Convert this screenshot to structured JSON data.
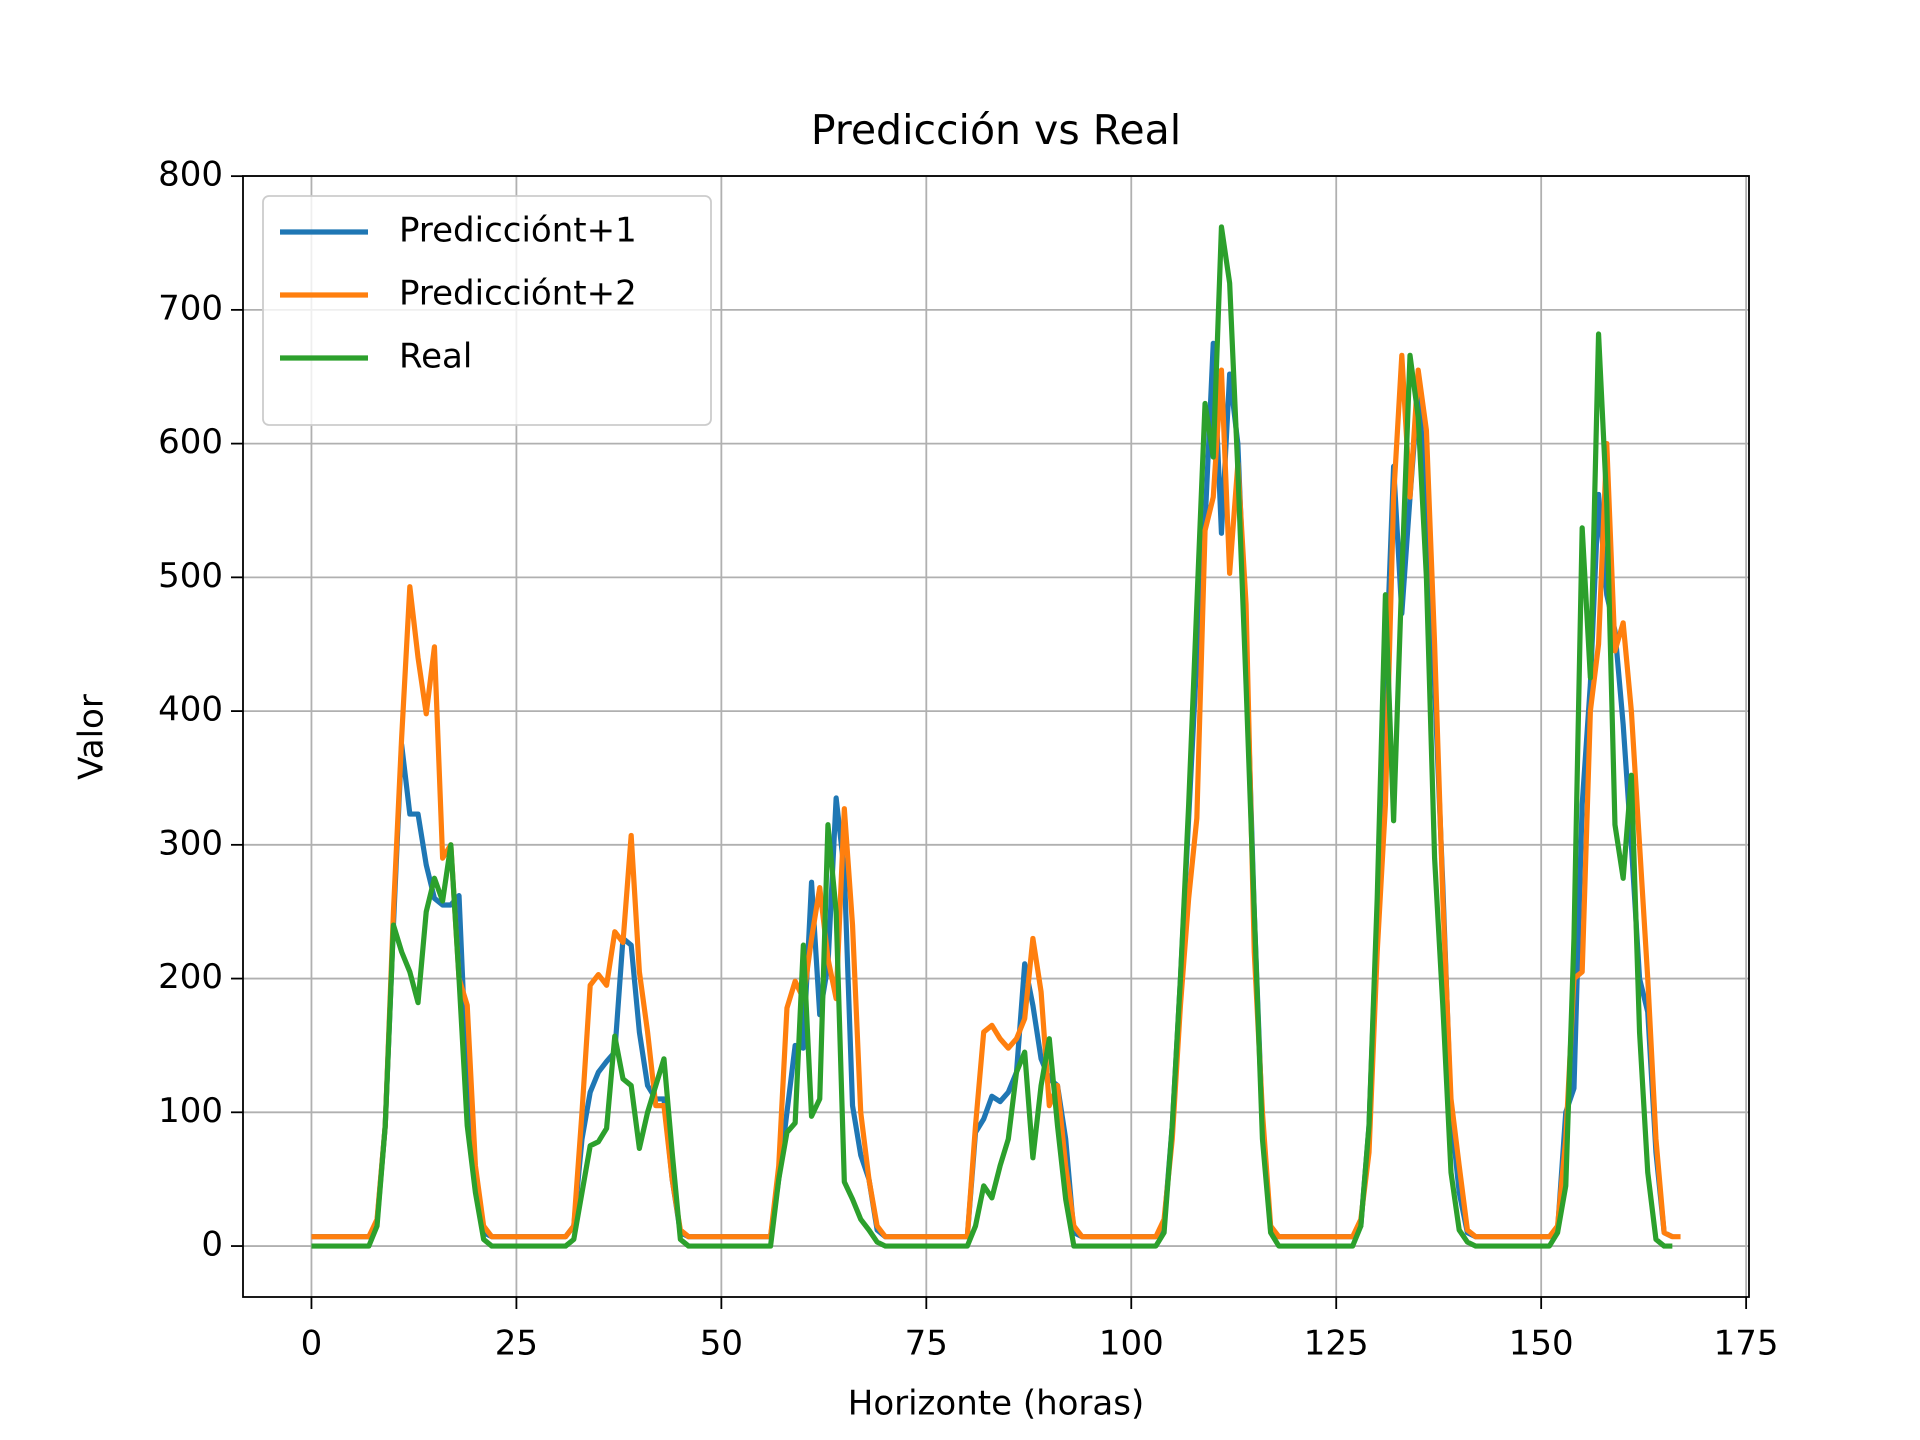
{
  "chart_data": {
    "type": "line",
    "title": "Predicción vs Real",
    "x_label": "Horizonte (horas)",
    "y_label": "Valor",
    "x": [
      0,
      1,
      2,
      3,
      4,
      5,
      6,
      7,
      8,
      9,
      10,
      11,
      12,
      13,
      14,
      15,
      16,
      17,
      18,
      19,
      20,
      21,
      22,
      23,
      24,
      25,
      26,
      27,
      28,
      29,
      30,
      31,
      32,
      33,
      34,
      35,
      36,
      37,
      38,
      39,
      40,
      41,
      42,
      43,
      44,
      45,
      46,
      47,
      48,
      49,
      50,
      51,
      52,
      53,
      54,
      55,
      56,
      57,
      58,
      59,
      60,
      61,
      62,
      63,
      64,
      65,
      66,
      67,
      68,
      69,
      70,
      71,
      72,
      73,
      74,
      75,
      76,
      77,
      78,
      79,
      80,
      81,
      82,
      83,
      84,
      85,
      86,
      87,
      88,
      89,
      90,
      91,
      92,
      93,
      94,
      95,
      96,
      97,
      98,
      99,
      100,
      101,
      102,
      103,
      104,
      105,
      106,
      107,
      108,
      109,
      110,
      111,
      112,
      113,
      114,
      115,
      116,
      117,
      118,
      119,
      120,
      121,
      122,
      123,
      124,
      125,
      126,
      127,
      128,
      129,
      130,
      131,
      132,
      133,
      134,
      135,
      136,
      137,
      138,
      139,
      140,
      141,
      142,
      143,
      144,
      145,
      146,
      147,
      148,
      149,
      150,
      151,
      152,
      153,
      154,
      155,
      156,
      157,
      158,
      159,
      160,
      161,
      162,
      163,
      164,
      165,
      166,
      167
    ],
    "series": [
      {
        "name": "Predicciónt+1",
        "color": "#1f77b4",
        "values": [
          7,
          7,
          7,
          7,
          7,
          7,
          7,
          7,
          18,
          90,
          240,
          375,
          323,
          323,
          285,
          260,
          255,
          255,
          262,
          120,
          50,
          10,
          7,
          7,
          7,
          7,
          7,
          7,
          7,
          7,
          7,
          7,
          15,
          80,
          115,
          130,
          138,
          145,
          230,
          225,
          160,
          120,
          110,
          110,
          50,
          10,
          7,
          7,
          7,
          7,
          7,
          7,
          7,
          7,
          7,
          7,
          7,
          50,
          100,
          150,
          148,
          272,
          173,
          210,
          335,
          280,
          105,
          68,
          50,
          12,
          7,
          7,
          7,
          7,
          7,
          7,
          7,
          7,
          7,
          7,
          7,
          85,
          95,
          112,
          108,
          115,
          130,
          211,
          180,
          140,
          125,
          120,
          80,
          10,
          7,
          7,
          7,
          7,
          7,
          7,
          7,
          7,
          7,
          7,
          15,
          90,
          200,
          320,
          440,
          540,
          675,
          533,
          652,
          600,
          450,
          250,
          90,
          12,
          7,
          7,
          7,
          7,
          7,
          7,
          7,
          7,
          7,
          7,
          15,
          90,
          250,
          420,
          583,
          473,
          560,
          640,
          560,
          420,
          270,
          100,
          40,
          10,
          7,
          7,
          7,
          7,
          7,
          7,
          7,
          7,
          7,
          7,
          12,
          100,
          118,
          330,
          420,
          562,
          487,
          460,
          390,
          300,
          200,
          175,
          70,
          10,
          7,
          null
        ]
      },
      {
        "name": "Predicciónt+2",
        "color": "#ff7f0e",
        "values": [
          7,
          7,
          7,
          7,
          7,
          7,
          7,
          7,
          20,
          90,
          250,
          380,
          493,
          440,
          398,
          448,
          290,
          300,
          200,
          180,
          60,
          15,
          7,
          7,
          7,
          7,
          7,
          7,
          7,
          7,
          7,
          7,
          15,
          100,
          195,
          203,
          195,
          235,
          227,
          307,
          205,
          160,
          105,
          105,
          50,
          12,
          7,
          7,
          7,
          7,
          7,
          7,
          7,
          7,
          7,
          7,
          7,
          60,
          178,
          198,
          185,
          230,
          268,
          215,
          185,
          327,
          240,
          100,
          50,
          15,
          7,
          7,
          7,
          7,
          7,
          7,
          7,
          7,
          7,
          7,
          7,
          90,
          160,
          165,
          155,
          148,
          155,
          170,
          230,
          190,
          105,
          120,
          60,
          15,
          7,
          7,
          7,
          7,
          7,
          7,
          7,
          7,
          7,
          7,
          20,
          80,
          180,
          260,
          320,
          535,
          560,
          655,
          503,
          585,
          480,
          220,
          100,
          15,
          7,
          7,
          7,
          7,
          7,
          7,
          7,
          7,
          7,
          7,
          20,
          70,
          220,
          330,
          560,
          666,
          560,
          655,
          610,
          450,
          260,
          110,
          60,
          12,
          7,
          7,
          7,
          7,
          7,
          7,
          7,
          7,
          7,
          7,
          15,
          80,
          200,
          205,
          400,
          450,
          600,
          445,
          466,
          400,
          300,
          200,
          80,
          10,
          7,
          7
        ]
      },
      {
        "name": "Real",
        "color": "#2ca02c",
        "values": [
          0,
          0,
          0,
          0,
          0,
          0,
          0,
          0,
          15,
          90,
          240,
          220,
          205,
          182,
          250,
          275,
          258,
          300,
          200,
          90,
          40,
          5,
          0,
          0,
          0,
          0,
          0,
          0,
          0,
          0,
          0,
          0,
          5,
          40,
          75,
          78,
          88,
          157,
          125,
          120,
          73,
          100,
          120,
          140,
          70,
          5,
          0,
          0,
          0,
          0,
          0,
          0,
          0,
          0,
          0,
          0,
          0,
          50,
          85,
          92,
          225,
          97,
          110,
          315,
          250,
          48,
          35,
          20,
          12,
          3,
          0,
          0,
          0,
          0,
          0,
          0,
          0,
          0,
          0,
          0,
          0,
          15,
          45,
          36,
          60,
          80,
          130,
          145,
          66,
          120,
          155,
          90,
          35,
          0,
          0,
          0,
          0,
          0,
          0,
          0,
          0,
          0,
          0,
          0,
          10,
          90,
          200,
          330,
          480,
          630,
          590,
          762,
          720,
          580,
          420,
          250,
          80,
          10,
          0,
          0,
          0,
          0,
          0,
          0,
          0,
          0,
          0,
          0,
          15,
          90,
          260,
          487,
          318,
          500,
          666,
          620,
          500,
          290,
          180,
          55,
          12,
          3,
          0,
          0,
          0,
          0,
          0,
          0,
          0,
          0,
          0,
          0,
          10,
          45,
          230,
          537,
          425,
          682,
          555,
          315,
          275,
          352,
          160,
          55,
          5,
          0,
          0,
          null
        ]
      }
    ],
    "xlim": [
      -8.35,
      175.35
    ],
    "ylim": [
      -38.1,
      800.1
    ],
    "xticks": [
      0,
      25,
      50,
      75,
      100,
      125,
      150,
      175
    ],
    "yticks": [
      0,
      100,
      200,
      300,
      400,
      500,
      600,
      700,
      800
    ],
    "grid": true,
    "legend": "upper left"
  }
}
